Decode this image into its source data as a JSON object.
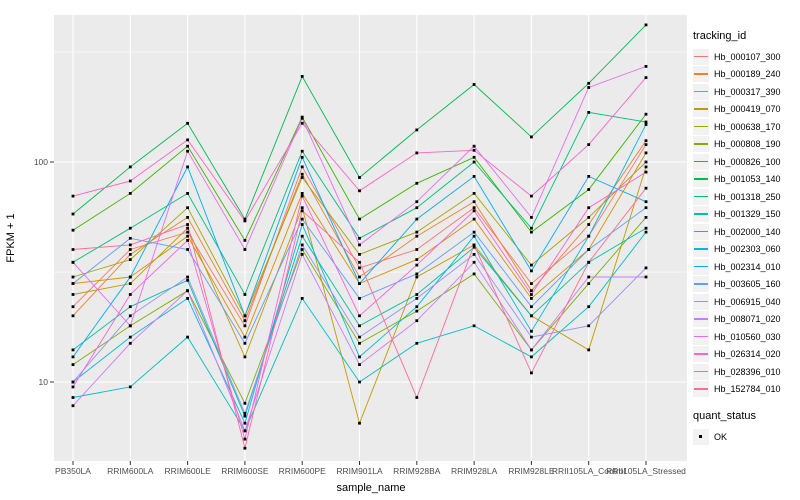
{
  "chart_data": {
    "type": "line",
    "title": "",
    "xlabel": "sample_name",
    "ylabel": "FPKM + 1",
    "y_scale": "log10",
    "y_ticks": [
      100,
      10
    ],
    "y_minor_ticks": [
      316,
      31.6
    ],
    "ylim": [
      4.4,
      466
    ],
    "grid": "on",
    "panel_bg": "#EBEBEB",
    "grid_color": "#FFFFFF",
    "point_color": "#000000",
    "point_shape": "square",
    "legend_position": "right",
    "categories": [
      "PB350LA",
      "RRIM600LA",
      "RRIM600LE",
      "RRIM600SE",
      "RRIM600PE",
      "RRIM901LA",
      "RRIM928BA",
      "RRIM928LA",
      "RRIM928LE",
      "RRII105LA_Control",
      "RRII105LA_Stressed"
    ],
    "series": [
      {
        "name": "Hb_000107_300",
        "color": "#F8766D",
        "values": [
          22,
          40,
          48,
          18,
          95,
          33,
          40,
          62,
          28,
          46,
          120
        ]
      },
      {
        "name": "Hb_000189_240",
        "color": "#EA8331",
        "values": [
          20,
          38,
          56,
          19,
          88,
          30,
          46,
          66,
          26,
          52,
          125
        ]
      },
      {
        "name": "Hb_000317_390",
        "color": "#D89000",
        "values": [
          28,
          30,
          46,
          16,
          72,
          28,
          36,
          55,
          24,
          40,
          110
        ]
      },
      {
        "name": "Hb_000419_070",
        "color": "#C09B00",
        "values": [
          25,
          28,
          50,
          13,
          62,
          6.5,
          30,
          42,
          20,
          14,
          95
        ]
      },
      {
        "name": "Hb_000638_170",
        "color": "#A3A500",
        "values": [
          30,
          36,
          62,
          20,
          85,
          38,
          48,
          72,
          34,
          56,
          100
        ]
      },
      {
        "name": "Hb_000808_190",
        "color": "#7CAE00",
        "values": [
          12,
          18,
          26,
          8,
          40,
          15,
          21,
          31,
          14,
          28,
          56
        ]
      },
      {
        "name": "Hb_000826_100",
        "color": "#39B600",
        "values": [
          49,
          72,
          118,
          44,
          160,
          55,
          80,
          105,
          48,
          75,
          165
        ]
      },
      {
        "name": "Hb_001053_140",
        "color": "#00BB4E",
        "values": [
          58,
          95,
          150,
          55,
          245,
          85,
          140,
          225,
          130,
          228,
          420
        ]
      },
      {
        "name": "Hb_001318_250",
        "color": "#00BF7D",
        "values": [
          35,
          50,
          72,
          25,
          112,
          45,
          62,
          100,
          50,
          168,
          152
        ]
      },
      {
        "name": "Hb_001329_150",
        "color": "#00C1A3",
        "values": [
          14,
          22,
          29,
          7,
          46,
          18,
          25,
          41,
          20,
          35,
          50
        ]
      },
      {
        "name": "Hb_002000_140",
        "color": "#00BFC4",
        "values": [
          8.5,
          9.5,
          16,
          6,
          24,
          10,
          15,
          18,
          13,
          22,
          48
        ]
      },
      {
        "name": "Hb_002303_060",
        "color": "#00B8E7",
        "values": [
          10,
          16,
          24,
          6.5,
          52,
          13,
          22,
          46,
          17,
          46,
          148
        ]
      },
      {
        "name": "Hb_002314_010",
        "color": "#00ACFC",
        "values": [
          13,
          30,
          95,
          20,
          105,
          28,
          55,
          86,
          32,
          86,
          66
        ]
      },
      {
        "name": "Hb_003605_160",
        "color": "#619CFF",
        "values": [
          28,
          45,
          40,
          15,
          55,
          24,
          31,
          48,
          22,
          40,
          62
        ]
      },
      {
        "name": "Hb_006915_040",
        "color": "#9590FF",
        "values": [
          10,
          20,
          30,
          7.2,
          42,
          16,
          24,
          38,
          16,
          18,
          33
        ]
      },
      {
        "name": "Hb_008071_020",
        "color": "#C77CFF",
        "values": [
          7.8,
          15,
          26,
          6,
          38,
          12,
          19,
          35,
          14,
          30,
          30
        ]
      },
      {
        "name": "Hb_010560_030",
        "color": "#E76BF3",
        "values": [
          35,
          18,
          112,
          40,
          158,
          42,
          66,
          118,
          56,
          218,
          272
        ]
      },
      {
        "name": "Hb_026314_020",
        "color": "#FA62DB",
        "values": [
          9.5,
          25,
          44,
          5.5,
          70,
          20,
          34,
          60,
          25,
          62,
          90
        ]
      },
      {
        "name": "Hb_028396_010",
        "color": "#FF61C9",
        "values": [
          70,
          82,
          126,
          54,
          150,
          74,
          110,
          113,
          70,
          120,
          242
        ]
      },
      {
        "name": "Hb_152784_010",
        "color": "#FF6A98",
        "values": [
          40,
          42,
          52,
          5,
          60,
          35,
          8.5,
          42,
          11,
          35,
          76
        ]
      }
    ],
    "legend": {
      "tracking_title": "tracking_id",
      "quant_title": "quant_status",
      "quant_items": [
        "OK"
      ]
    }
  }
}
